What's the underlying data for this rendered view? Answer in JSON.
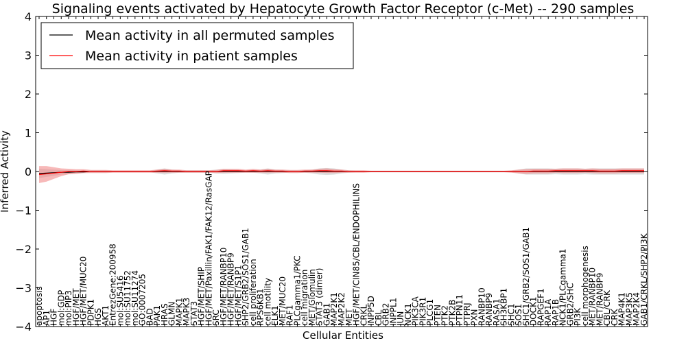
{
  "chart_data": {
    "type": "line",
    "title": "Signaling events activated by Hepatocyte Growth Factor Receptor (c-Met) -- 290 samples",
    "xlabel": "Cellular Entities",
    "ylabel": "Inferred Activity",
    "ylim": [
      -4,
      4
    ],
    "yticks": [
      -4,
      -3,
      -2,
      -1,
      0,
      1,
      2,
      3,
      4
    ],
    "legend_position": "top-left",
    "colors": {
      "permuted": "#000000",
      "patient": "#ff0000",
      "patient_band": "#f08080",
      "permuted_band": "#c8c8c8"
    },
    "categories": [
      "apoptosis",
      "AP1",
      "HGF",
      "mol:GDP",
      "mol:PIP3",
      "HGF/MET",
      "HGF/MET/MUC20",
      "PDPK1",
      "HGS",
      "AKT1",
      "EntrezGene:200958",
      "mol:SU5416",
      "mol:SU11752",
      "mol:SU11274",
      "GO:0007205",
      "BAD",
      "PAK1",
      "HRAS",
      "GLMN",
      "MAPK1",
      "MAPK3",
      "STAT3",
      "HGF/MET/SHIP",
      "HGF/MET/Paxillin/FAK1/FAK12/RasGAP",
      "SRC",
      "HGF/MET/RANBP10",
      "HGF/MET/RANBP9",
      "HGF/MET/S1P1",
      "SHP2/GRB2/SOS1/GAB1",
      "cell proliferation",
      "RPS6KB1",
      "cell motility",
      "ELK1",
      "MET/MUC20",
      "RAF1",
      "PLCgamma1/PKC",
      "cell migration",
      "MET/Glomulin",
      "STAT3 (dimer)",
      "GAB1",
      "MAP2K1",
      "MAP2K2",
      "MET",
      "HGF/MET/CIN85/CBL/ENDOPHILINS",
      "CRKL",
      "INPP5D",
      "CBL",
      "GRB2",
      "INPPL1",
      "JUN",
      "NCK1",
      "PIK3CA",
      "PIK3R1",
      "PLCG1",
      "PTEN",
      "PTK2",
      "PTK2B",
      "PTPN11",
      "PTPRJ",
      "PXN",
      "RANBP10",
      "RANBP9",
      "RASA1",
      "SH3KBP1",
      "SHC1",
      "SOS1",
      "SHC1/GRB2/SOS1/GAB1",
      "DOCK1",
      "RAPGEF1",
      "RAP1A",
      "RAP1B",
      "NCK1/PLCgamma1",
      "GRB2/SHC",
      "PI3K",
      "cell morphogenesis",
      "MET/RANBP10",
      "MET/RANBP9",
      "CBL/CRK",
      "CRK",
      "MAP4K1",
      "MAP3K5",
      "MAP2K4",
      "GAB1/CRKL/SHP2/PI3K"
    ],
    "series": [
      {
        "name": "Mean activity in all permuted samples",
        "values": [
          -0.05,
          -0.04,
          -0.03,
          -0.02,
          -0.02,
          -0.01,
          -0.01,
          0.0,
          0.0,
          0.0,
          0.0,
          0.0,
          0.0,
          0.0,
          0.0,
          0.0,
          0.0,
          0.0,
          0.0,
          0.0,
          0.0,
          0.0,
          0.0,
          0.0,
          0.0,
          0.0,
          0.0,
          0.0,
          0.0,
          0.0,
          0.0,
          0.0,
          0.0,
          0.0,
          0.0,
          0.0,
          0.0,
          0.0,
          0.0,
          0.0,
          0.0,
          0.0,
          0.0,
          0.0,
          0.0,
          0.0,
          0.0,
          0.0,
          0.0,
          0.0,
          0.0,
          0.0,
          0.0,
          0.0,
          0.0,
          0.0,
          0.0,
          0.0,
          0.0,
          0.0,
          0.0,
          0.0,
          0.0,
          0.0,
          0.0,
          0.0,
          0.0,
          0.0,
          0.0,
          0.0,
          0.0,
          0.0,
          0.0,
          0.0,
          0.0,
          0.0,
          0.0,
          0.0,
          0.0,
          0.0,
          0.0,
          0.0,
          0.0
        ],
        "spread": [
          0.12,
          0.1,
          0.08,
          0.06,
          0.05,
          0.04,
          0.03,
          0.03,
          0.03,
          0.03,
          0.02,
          0.02,
          0.02,
          0.02,
          0.02,
          0.02,
          0.05,
          0.08,
          0.05,
          0.03,
          0.03,
          0.03,
          0.03,
          0.03,
          0.05,
          0.06,
          0.05,
          0.04,
          0.03,
          0.03,
          0.05,
          0.08,
          0.05,
          0.04,
          0.03,
          0.03,
          0.03,
          0.05,
          0.08,
          0.09,
          0.08,
          0.05,
          0.03,
          0.02,
          0.02,
          0.02,
          0.02,
          0.02,
          0.02,
          0.02,
          0.02,
          0.02,
          0.02,
          0.02,
          0.02,
          0.02,
          0.02,
          0.02,
          0.02,
          0.02,
          0.02,
          0.02,
          0.02,
          0.02,
          0.02,
          0.05,
          0.08,
          0.08,
          0.08,
          0.08,
          0.07,
          0.08,
          0.08,
          0.08,
          0.07,
          0.08,
          0.08,
          0.08,
          0.08,
          0.08,
          0.08,
          0.08,
          0.08
        ]
      },
      {
        "name": "Mean activity in patient samples",
        "values": [
          -0.08,
          -0.06,
          -0.04,
          -0.02,
          0.0,
          0.0,
          0.01,
          0.0,
          0.0,
          0.0,
          0.0,
          0.0,
          0.0,
          0.0,
          0.0,
          0.0,
          0.01,
          0.02,
          0.01,
          0.01,
          0.0,
          0.0,
          0.0,
          0.0,
          0.0,
          0.02,
          0.02,
          0.02,
          0.01,
          0.02,
          0.01,
          0.02,
          0.01,
          0.01,
          0.0,
          0.0,
          0.01,
          0.01,
          0.02,
          0.02,
          0.01,
          0.01,
          0.0,
          0.0,
          0.0,
          0.0,
          0.0,
          0.0,
          0.0,
          0.0,
          0.0,
          0.0,
          0.0,
          0.0,
          0.0,
          0.0,
          0.0,
          0.0,
          0.0,
          0.0,
          0.0,
          0.0,
          0.0,
          0.0,
          0.0,
          0.0,
          0.0,
          0.01,
          0.01,
          0.01,
          0.02,
          0.02,
          0.02,
          0.02,
          0.02,
          0.02,
          0.01,
          0.01,
          0.01,
          0.02,
          0.02,
          0.02,
          0.02
        ],
        "spread": [
          0.22,
          0.2,
          0.15,
          0.1,
          0.07,
          0.06,
          0.05,
          0.04,
          0.04,
          0.04,
          0.03,
          0.03,
          0.03,
          0.03,
          0.03,
          0.03,
          0.04,
          0.05,
          0.04,
          0.04,
          0.03,
          0.03,
          0.03,
          0.03,
          0.04,
          0.05,
          0.05,
          0.05,
          0.04,
          0.05,
          0.04,
          0.05,
          0.04,
          0.04,
          0.04,
          0.04,
          0.04,
          0.04,
          0.05,
          0.06,
          0.05,
          0.04,
          0.03,
          0.03,
          0.03,
          0.02,
          0.02,
          0.02,
          0.02,
          0.02,
          0.02,
          0.02,
          0.02,
          0.02,
          0.02,
          0.02,
          0.02,
          0.02,
          0.02,
          0.02,
          0.02,
          0.02,
          0.02,
          0.02,
          0.03,
          0.05,
          0.06,
          0.06,
          0.06,
          0.06,
          0.05,
          0.06,
          0.06,
          0.06,
          0.05,
          0.06,
          0.06,
          0.06,
          0.06,
          0.06,
          0.06,
          0.06,
          0.06
        ]
      }
    ]
  }
}
